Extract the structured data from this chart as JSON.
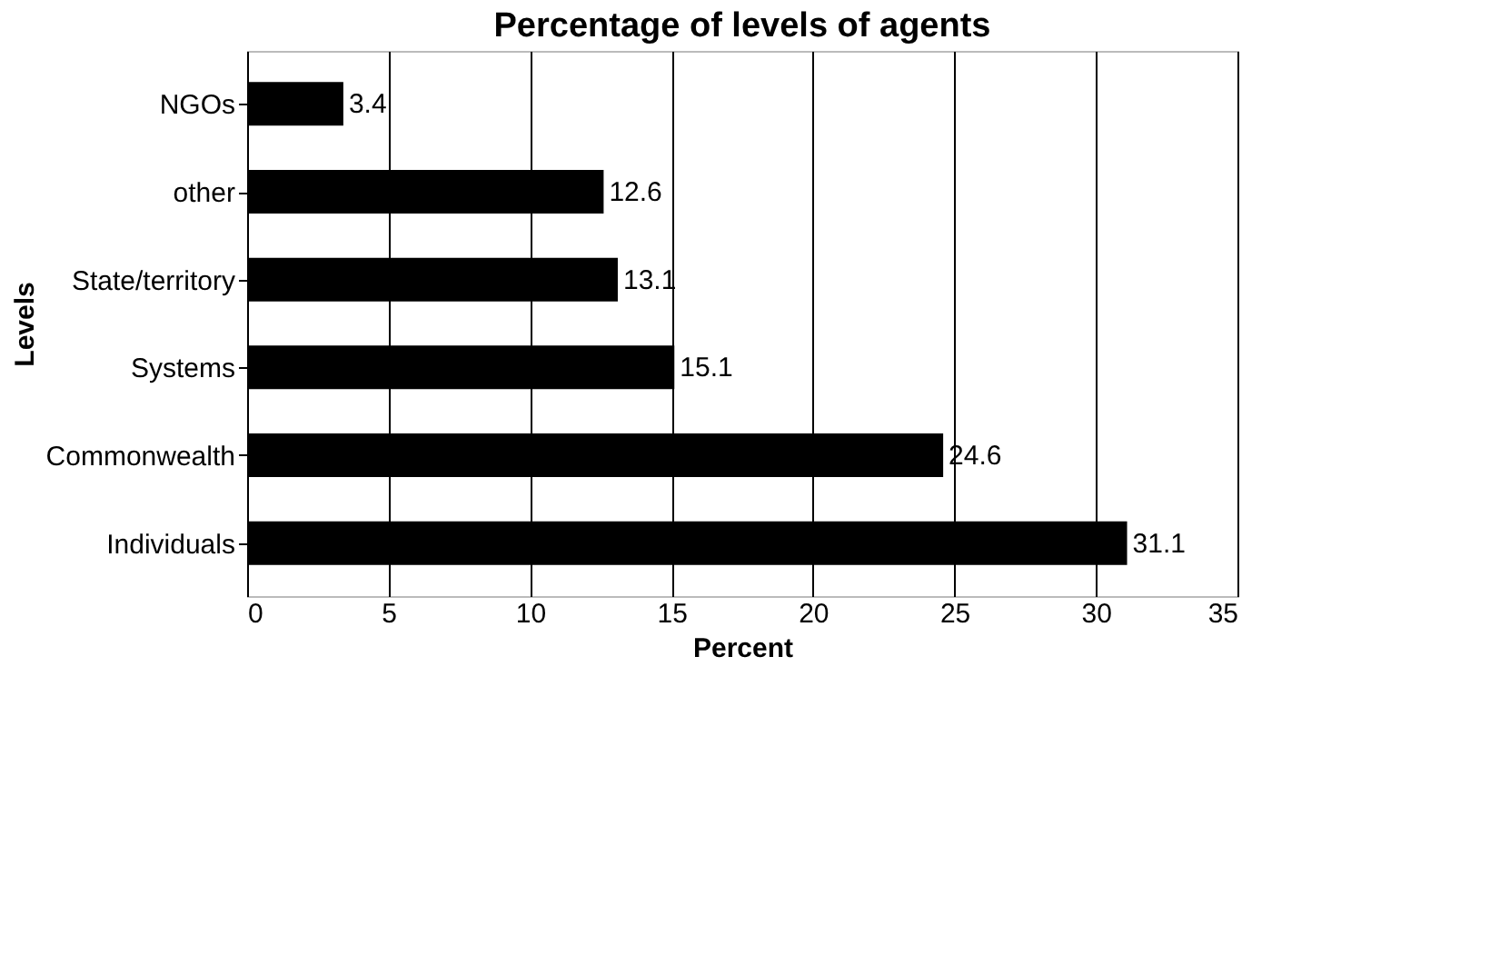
{
  "chart_data": {
    "type": "bar",
    "orientation": "horizontal",
    "title": "Percentage of levels of agents",
    "xlabel": "Percent",
    "ylabel": "Levels",
    "categories": [
      "NGOs",
      "other",
      "State/territory",
      "Systems",
      "Commonwealth",
      "Individuals"
    ],
    "values": [
      3.4,
      12.6,
      13.1,
      15.1,
      24.6,
      31.1
    ],
    "color": "#000000",
    "xlim": [
      0,
      35
    ],
    "xticks": [
      0,
      5,
      10,
      15,
      20,
      25,
      30,
      35
    ],
    "grid": "x",
    "data_labels": true
  }
}
